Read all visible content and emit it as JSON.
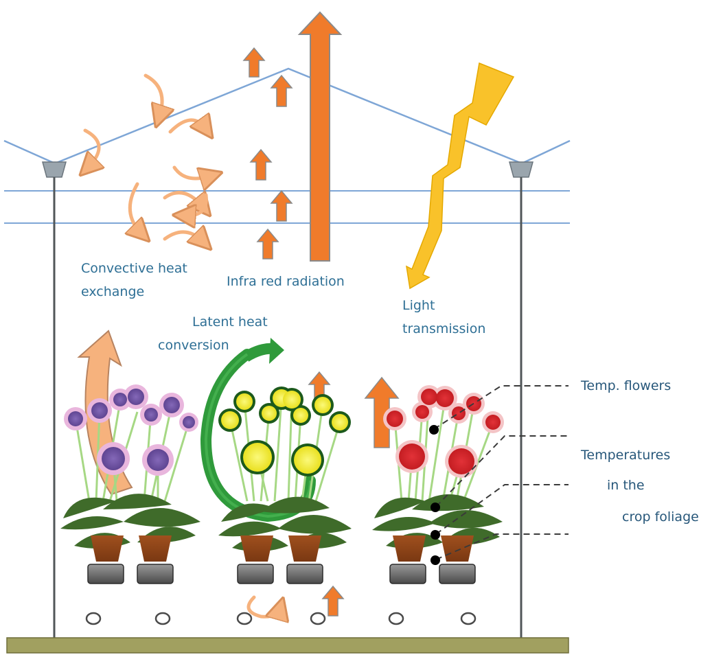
{
  "diagram": {
    "labels": {
      "convective_line1": "Convective heat",
      "convective_line2": "exchange",
      "infrared": "Infra red radiation",
      "light_line1": "Light",
      "light_line2": "transmission",
      "latent_line1": "Latent heat",
      "latent_line2": "conversion",
      "temp_flowers": "Temp. flowers",
      "foliage_line1": "Temperatures",
      "foliage_line2": "in the",
      "foliage_line3": "crop foliage"
    },
    "flower_groups": [
      {
        "name": "purple",
        "petal": "#e9b6dd",
        "center": "#6b4f9e"
      },
      {
        "name": "yellow",
        "petal": "#f3f04a",
        "center": "#1c5a1c"
      },
      {
        "name": "red",
        "petal": "#f4c4c6",
        "center": "#d4252a"
      }
    ],
    "colors": {
      "roof_line": "#7ea6d6",
      "infrared_arrow": "#f07b2b",
      "light_arrow": "#f9c22a",
      "convective_arrow": "#f6b27d",
      "latent_arrow": "#2f9a3b",
      "sensor_dot": "#000000",
      "ground": "#a1a060"
    }
  }
}
